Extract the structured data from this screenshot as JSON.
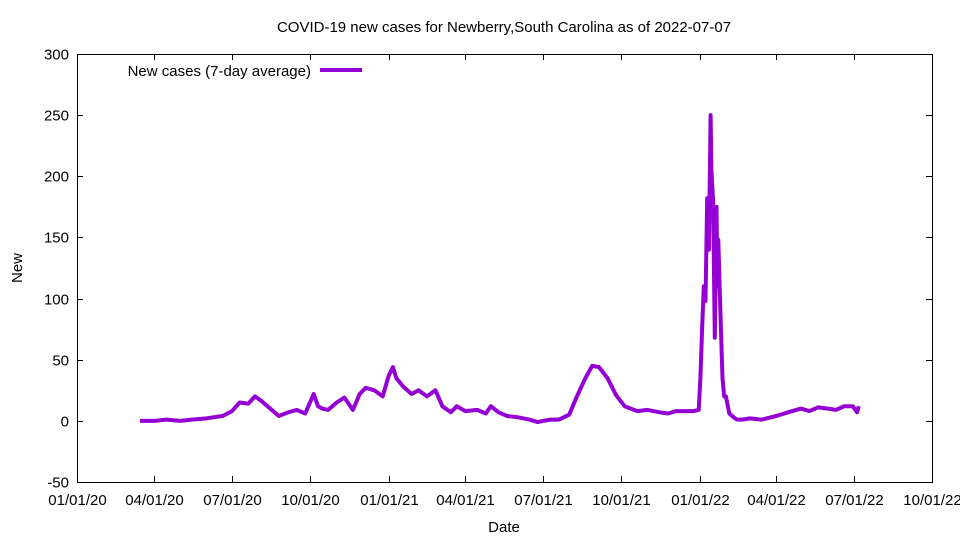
{
  "chart_data": {
    "type": "line",
    "title": "COVID-19 new cases for Newberry,South Carolina as of 2022-07-07",
    "xlabel": "Date",
    "ylabel": "New",
    "xlim": [
      "2020-01-01",
      "2022-10-01"
    ],
    "ylim": [
      -50,
      300
    ],
    "x_ticks": [
      "01/01/20",
      "04/01/20",
      "07/01/20",
      "10/01/20",
      "01/01/21",
      "04/01/21",
      "07/01/21",
      "10/01/21",
      "01/01/22",
      "04/01/22",
      "07/01/22",
      "10/01/22"
    ],
    "y_ticks": [
      -50,
      0,
      50,
      100,
      150,
      200,
      250,
      300
    ],
    "grid": false,
    "legend_position": "top-left",
    "color": "#9400d3",
    "series": [
      {
        "name": "New cases (7-day average)",
        "x": [
          "2020-03-15",
          "2020-04-01",
          "2020-04-15",
          "2020-05-01",
          "2020-05-15",
          "2020-06-01",
          "2020-06-10",
          "2020-06-20",
          "2020-07-01",
          "2020-07-10",
          "2020-07-20",
          "2020-07-28",
          "2020-08-05",
          "2020-08-15",
          "2020-08-25",
          "2020-09-05",
          "2020-09-15",
          "2020-09-25",
          "2020-10-05",
          "2020-10-10",
          "2020-10-15",
          "2020-10-22",
          "2020-11-01",
          "2020-11-10",
          "2020-11-20",
          "2020-11-28",
          "2020-12-05",
          "2020-12-15",
          "2020-12-25",
          "2021-01-01",
          "2021-01-06",
          "2021-01-10",
          "2021-01-18",
          "2021-01-28",
          "2021-02-05",
          "2021-02-15",
          "2021-02-25",
          "2021-03-05",
          "2021-03-15",
          "2021-03-22",
          "2021-04-01",
          "2021-04-15",
          "2021-04-25",
          "2021-05-01",
          "2021-05-10",
          "2021-05-20",
          "2021-06-01",
          "2021-06-15",
          "2021-06-25",
          "2021-07-01",
          "2021-07-10",
          "2021-07-20",
          "2021-08-01",
          "2021-08-10",
          "2021-08-20",
          "2021-08-28",
          "2021-09-05",
          "2021-09-15",
          "2021-09-25",
          "2021-10-05",
          "2021-10-20",
          "2021-11-01",
          "2021-11-15",
          "2021-11-25",
          "2021-12-05",
          "2021-12-15",
          "2021-12-25",
          "2021-12-31",
          "2022-01-02",
          "2022-01-04",
          "2022-01-06",
          "2022-01-08",
          "2022-01-10",
          "2022-01-12",
          "2022-01-14",
          "2022-01-15",
          "2022-01-17",
          "2022-01-19",
          "2022-01-21",
          "2022-01-22",
          "2022-01-23",
          "2022-01-25",
          "2022-01-27",
          "2022-01-28",
          "2022-01-30",
          "2022-02-01",
          "2022-02-05",
          "2022-02-10",
          "2022-02-14",
          "2022-02-20",
          "2022-03-01",
          "2022-03-15",
          "2022-04-01",
          "2022-04-15",
          "2022-04-30",
          "2022-05-10",
          "2022-05-20",
          "2022-06-01",
          "2022-06-10",
          "2022-06-20",
          "2022-06-30",
          "2022-07-05",
          "2022-07-07"
        ],
        "values": [
          0,
          0,
          1,
          0,
          1,
          2,
          3,
          4,
          8,
          15,
          14,
          20,
          16,
          10,
          4,
          7,
          9,
          6,
          22,
          12,
          10,
          9,
          15,
          19,
          9,
          22,
          27,
          25,
          20,
          37,
          44,
          35,
          28,
          22,
          25,
          20,
          25,
          12,
          7,
          12,
          8,
          9,
          6,
          12,
          7,
          4,
          3,
          1,
          -1,
          0,
          1,
          1,
          5,
          20,
          35,
          45,
          44,
          35,
          21,
          12,
          8,
          9,
          7,
          6,
          8,
          8,
          8,
          9,
          35,
          75,
          110,
          98,
          182,
          140,
          250,
          205,
          180,
          68,
          175,
          110,
          148,
          100,
          55,
          35,
          20,
          20,
          6,
          3,
          1,
          1,
          2,
          1,
          4,
          7,
          10,
          8,
          11,
          10,
          9,
          12,
          12,
          7,
          12
        ]
      }
    ]
  }
}
